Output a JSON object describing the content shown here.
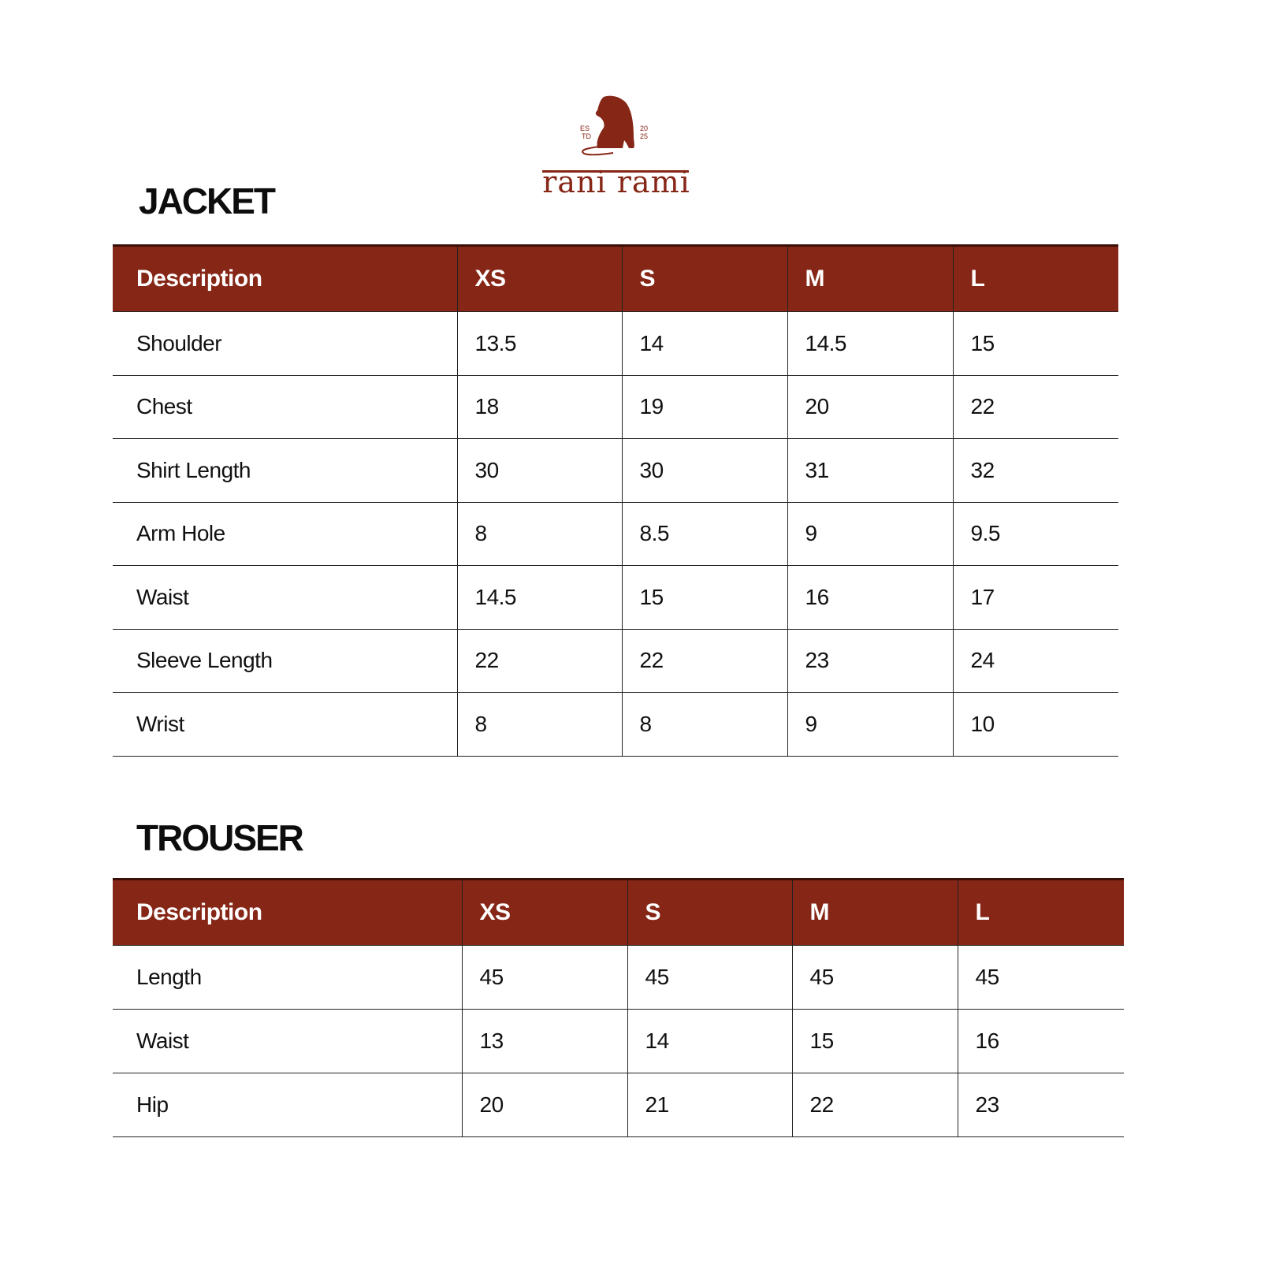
{
  "brand": {
    "name": "rani rami",
    "est_left": [
      "ES",
      "TD"
    ],
    "est_right": [
      "20",
      "25"
    ],
    "color": "#862616"
  },
  "jacket": {
    "title": "JACKET",
    "headers": [
      "Description",
      "XS",
      "S",
      "M",
      "L"
    ],
    "rows": [
      [
        "Shoulder",
        "13.5",
        "14",
        "14.5",
        "15"
      ],
      [
        "Chest",
        "18",
        "19",
        "20",
        "22"
      ],
      [
        "Shirt Length",
        "30",
        "30",
        "31",
        "32"
      ],
      [
        "Arm Hole",
        "8",
        "8.5",
        "9",
        "9.5"
      ],
      [
        "Waist",
        "14.5",
        "15",
        "16",
        "17"
      ],
      [
        "Sleeve Length",
        "22",
        "22",
        "23",
        "24"
      ],
      [
        "Wrist",
        "8",
        "8",
        "9",
        "10"
      ]
    ]
  },
  "trouser": {
    "title": "TROUSER",
    "headers": [
      "Description",
      "XS",
      "S",
      "M",
      "L"
    ],
    "rows": [
      [
        "Length",
        "45",
        "45",
        "45",
        "45"
      ],
      [
        "Waist",
        "13",
        "14",
        "15",
        "16"
      ],
      [
        "Hip",
        "20",
        "21",
        "22",
        "23"
      ]
    ]
  }
}
